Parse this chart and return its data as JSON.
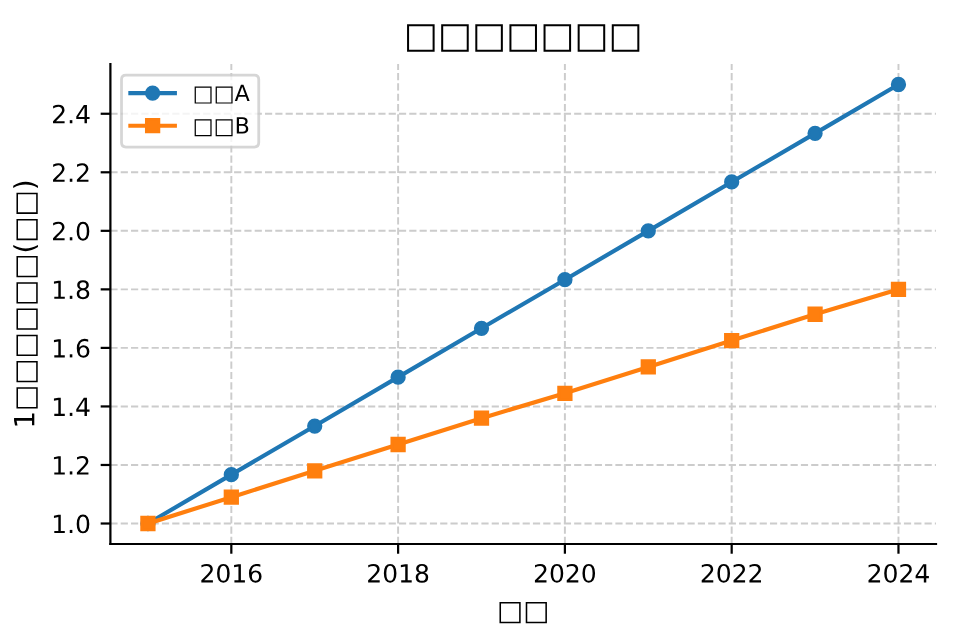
{
  "chart_data": {
    "type": "line",
    "title": "□□□□□□□",
    "xlabel": "□□",
    "ylabel": "1□□□□□□(□□)",
    "x": [
      2015,
      2016,
      2017,
      2018,
      2019,
      2020,
      2021,
      2022,
      2023,
      2024
    ],
    "series": [
      {
        "name": "□□A",
        "color": "#1f77b4",
        "marker": "circle",
        "values": [
          1.0,
          1.167,
          1.333,
          1.5,
          1.667,
          1.833,
          2.0,
          2.167,
          2.333,
          2.5
        ]
      },
      {
        "name": "□□B",
        "color": "#ff7f0e",
        "marker": "square",
        "values": [
          1.0,
          1.09,
          1.18,
          1.27,
          1.36,
          1.445,
          1.535,
          1.625,
          1.715,
          1.8
        ]
      }
    ],
    "xlim": [
      2014.55,
      2024.45
    ],
    "ylim": [
      0.93,
      2.57
    ],
    "xticks": [
      2016,
      2018,
      2020,
      2022,
      2024
    ],
    "yticks": [
      {
        "value": 1.0,
        "label": "1.0"
      },
      {
        "value": 1.2,
        "label": "1.2"
      },
      {
        "value": 1.4,
        "label": "1.4"
      },
      {
        "value": 1.6,
        "label": "1.6"
      },
      {
        "value": 1.8,
        "label": "1.8"
      },
      {
        "value": 2.0,
        "label": "2.0"
      },
      {
        "value": 2.2,
        "label": "2.2"
      },
      {
        "value": 2.4,
        "label": "2.4"
      }
    ],
    "grid": true,
    "legend": "top left",
    "line_style": "solid"
  }
}
